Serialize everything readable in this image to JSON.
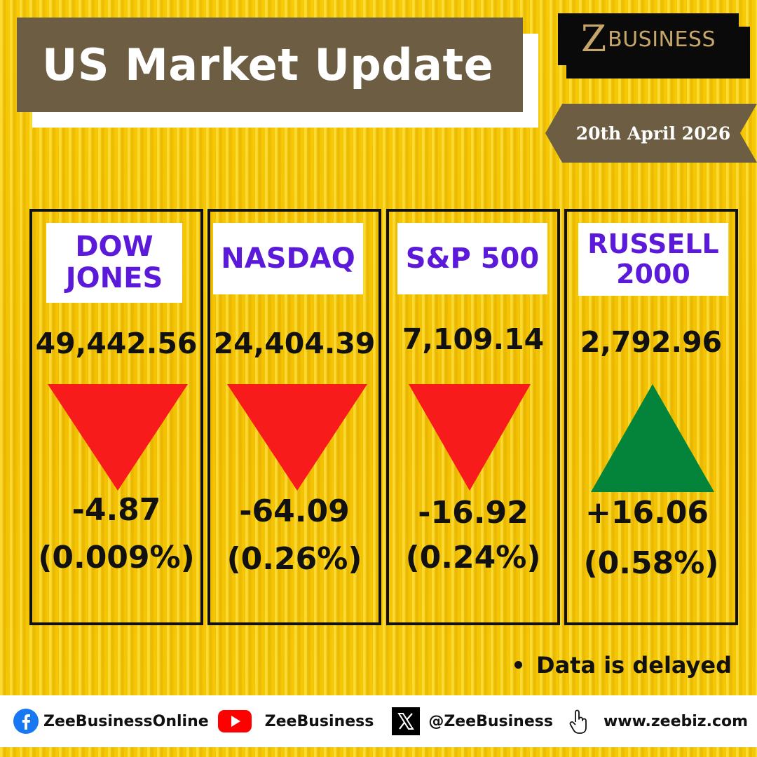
{
  "title": "US Market Update",
  "logo": {
    "z": "Z",
    "word": "BUSINESS"
  },
  "date": "20th April 2026",
  "colors": {
    "down": "#f71b1b",
    "up": "#03843a",
    "label": "#5b19d9",
    "banner": "#6c5d43",
    "background": "#f5c400"
  },
  "indices": [
    {
      "name_lines": [
        "DOW",
        "JONES"
      ],
      "value": "49,442.56",
      "direction": "down",
      "change": "-4.87",
      "percent": "(0.009%)"
    },
    {
      "name_lines": [
        "NASDAQ"
      ],
      "value": "24,404.39",
      "direction": "down",
      "change": "-64.09",
      "percent": "(0.26%)"
    },
    {
      "name_lines": [
        "S&P 500"
      ],
      "value": "7,109.14",
      "direction": "down",
      "change": "-16.92",
      "percent": "(0.24%)"
    },
    {
      "name_lines": [
        "RUSSELL",
        "2000"
      ],
      "value": "2,792.96",
      "direction": "up",
      "change": "+16.06",
      "percent": "(0.58%)"
    }
  ],
  "note": "Data is delayed",
  "footer": {
    "facebook": {
      "icon": "facebook-icon",
      "text": "ZeeBusinessOnline"
    },
    "youtube": {
      "icon": "youtube-icon",
      "text": "ZeeBusiness"
    },
    "x": {
      "icon": "x-icon",
      "text": "@ZeeBusiness"
    },
    "web": {
      "icon": "pointer-hand-icon",
      "text": "www.zeebiz.com"
    }
  }
}
